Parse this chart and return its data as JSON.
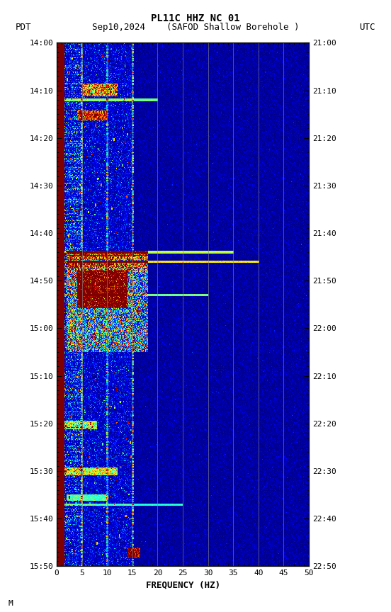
{
  "title_line1": "PL11C HHZ NC 01",
  "xlabel": "FREQUENCY (HZ)",
  "freq_min": 0,
  "freq_max": 50,
  "freq_ticks": [
    0,
    5,
    10,
    15,
    20,
    25,
    30,
    35,
    40,
    45,
    50
  ],
  "pdt_ticks": [
    "14:00",
    "14:10",
    "14:20",
    "14:30",
    "14:40",
    "14:50",
    "15:00",
    "15:10",
    "15:20",
    "15:30",
    "15:40",
    "15:50"
  ],
  "utc_ticks": [
    "21:00",
    "21:10",
    "21:20",
    "21:30",
    "21:40",
    "21:50",
    "22:00",
    "22:10",
    "22:20",
    "22:30",
    "22:40",
    "22:50"
  ],
  "vertical_lines_freq": [
    5,
    10,
    15,
    20,
    25,
    30,
    35,
    40,
    45
  ],
  "colormap": "jet",
  "noise_seed": 42,
  "header_pdt": "PDT",
  "header_date": "Sep10,2024",
  "header_station": "(SAFOD Shallow Borehole )",
  "header_utc": "UTC",
  "footer_note": "M"
}
